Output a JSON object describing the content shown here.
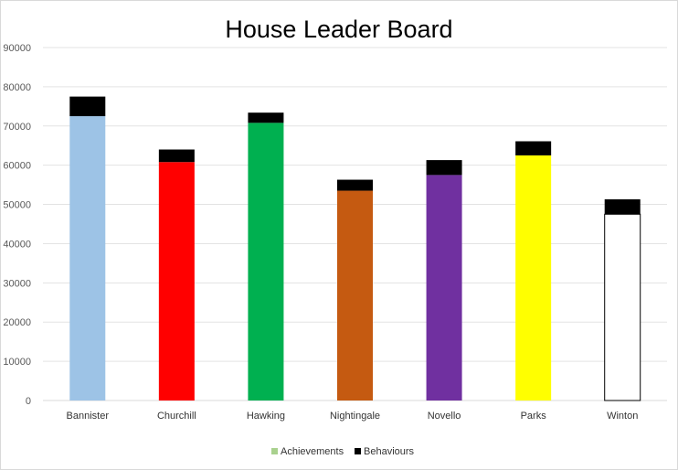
{
  "chart_data": {
    "type": "bar",
    "stacked": true,
    "title": "House Leader Board",
    "categories": [
      "Bannister",
      "Churchill",
      "Hawking",
      "Nightingale",
      "Novello",
      "Parks",
      "Winton"
    ],
    "series": [
      {
        "name": "Achievements",
        "values": [
          72500,
          60800,
          70800,
          53500,
          57500,
          62500,
          47500
        ],
        "legend_color": "#a9d18e",
        "bar_colors": [
          "#9dc3e6",
          "#ff0000",
          "#00b050",
          "#c55a11",
          "#7030a0",
          "#ffff00",
          "#ffffff"
        ]
      },
      {
        "name": "Behaviours",
        "values": [
          5000,
          3200,
          2600,
          2800,
          3800,
          3600,
          3800
        ],
        "color": "#000000"
      }
    ],
    "yticks": [
      "0",
      "10000",
      "20000",
      "30000",
      "40000",
      "50000",
      "60000",
      "70000",
      "80000",
      "90000"
    ],
    "ylim": [
      0,
      90000
    ],
    "grid": true,
    "legend_position": "bottom"
  }
}
